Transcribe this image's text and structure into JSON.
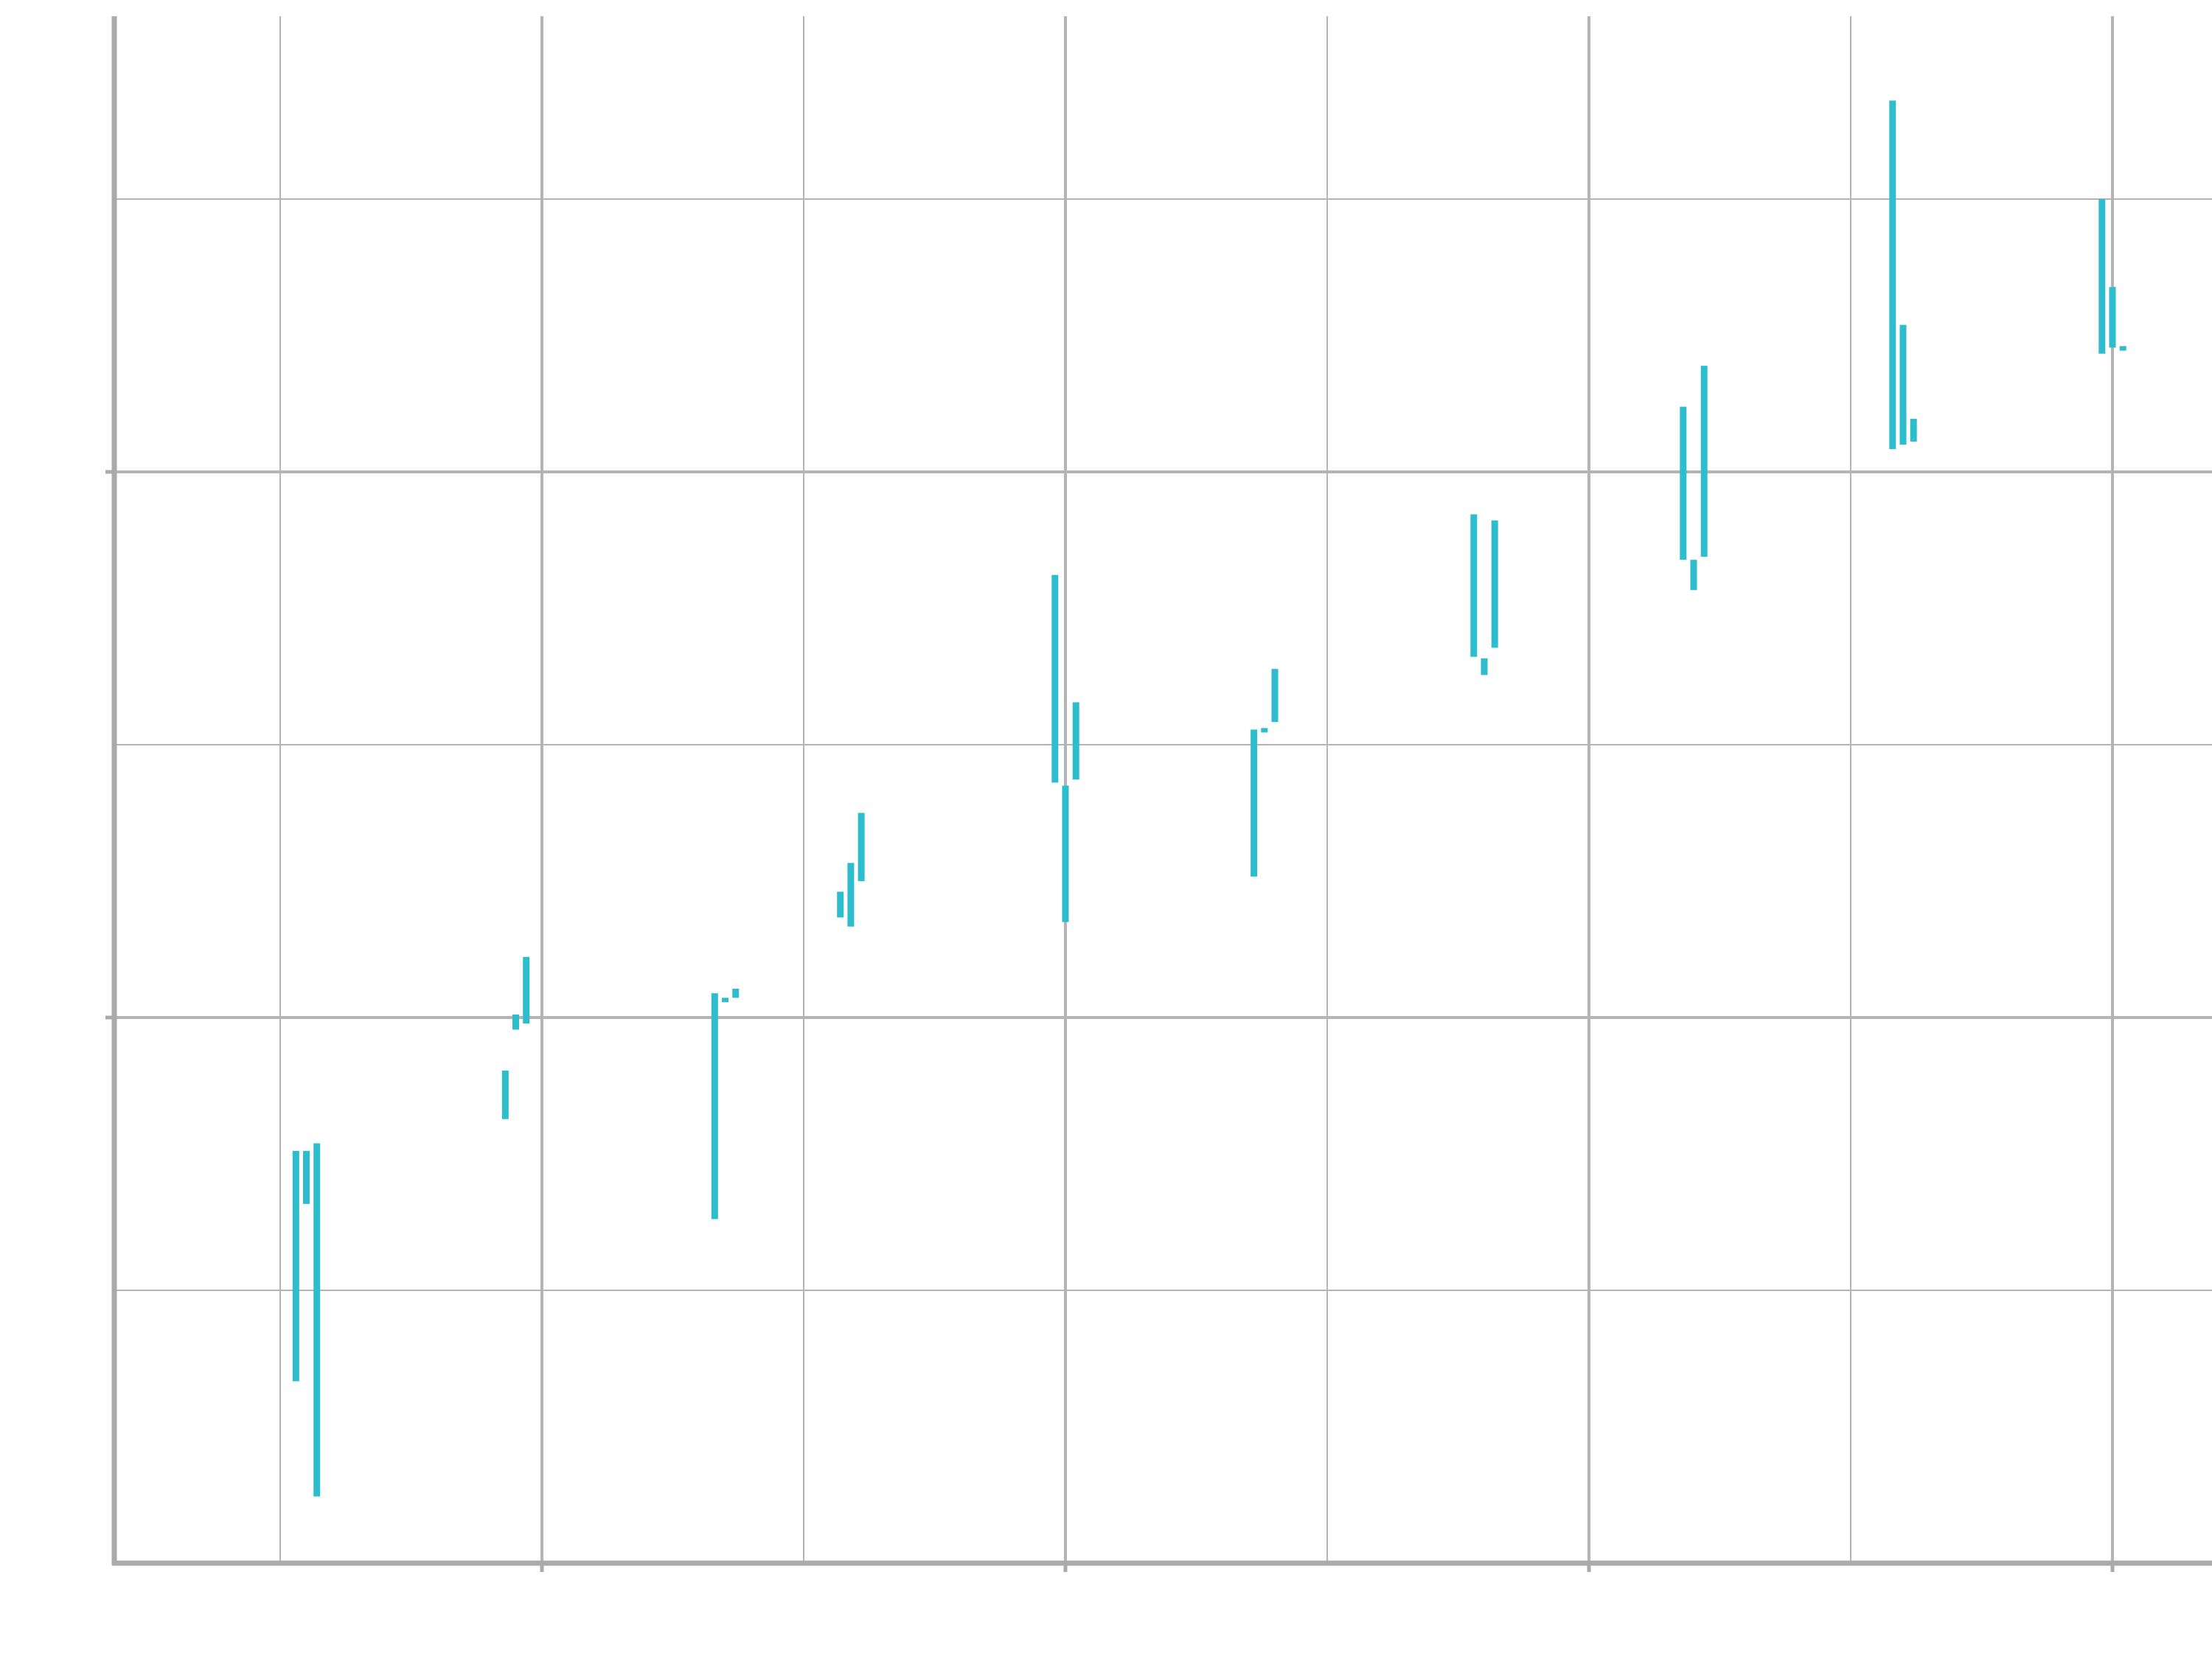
{
  "chart_data": {
    "type": "bar",
    "title": "",
    "xlabel": "",
    "ylabel": "",
    "grid": true,
    "xlim": [
      0.7,
      8.7
    ],
    "ylim": [
      0,
      9.6
    ],
    "x_major_ticks": [
      2,
      4,
      6,
      8
    ],
    "x_minor_ticks": [
      1,
      3,
      5,
      7
    ],
    "y_major_ticks": [
      3.6,
      7.2
    ],
    "y_minor_ticks": [
      1.8,
      5.4,
      9.0
    ],
    "colors": {
      "bar": "#2dbdcd",
      "grid": "#b4b4b4",
      "axis": "#aaaaaa"
    },
    "series": [
      {
        "name": "",
        "ranges": [
          [
            1.06,
            1.2,
            2.72
          ],
          [
            1.1,
            2.37,
            2.72
          ],
          [
            1.14,
            0.44,
            2.77
          ],
          [
            1.86,
            2.93,
            3.25
          ],
          [
            1.9,
            3.52,
            3.62
          ],
          [
            1.94,
            3.56,
            4.0
          ],
          [
            2.66,
            2.27,
            3.76
          ],
          [
            2.7,
            3.72,
            3.73
          ],
          [
            2.74,
            3.73,
            3.79
          ],
          [
            3.14,
            4.43,
            4.26
          ],
          [
            3.18,
            4.62,
            4.2
          ],
          [
            3.22,
            4.5,
            4.95
          ],
          [
            3.96,
            5.15,
            6.52
          ],
          [
            4.0,
            4.23,
            5.13
          ],
          [
            4.04,
            5.17,
            5.68
          ],
          [
            4.72,
            4.53,
            5.5
          ],
          [
            4.8,
            5.55,
            5.9
          ],
          [
            4.76,
            5.51,
            5.5
          ],
          [
            5.56,
            5.98,
            6.92
          ],
          [
            5.6,
            5.86,
            5.97
          ],
          [
            5.64,
            6.04,
            6.88
          ],
          [
            6.36,
            6.62,
            7.63
          ],
          [
            6.4,
            6.42,
            6.62
          ],
          [
            6.44,
            6.64,
            7.9
          ],
          [
            7.16,
            7.35,
            9.65
          ],
          [
            7.2,
            7.38,
            8.17
          ],
          [
            7.24,
            7.4,
            7.55
          ],
          [
            7.96,
            7.98,
            9.0
          ],
          [
            8.0,
            8.02,
            8.42
          ],
          [
            8.04,
            8.03,
            8.0
          ]
        ]
      }
    ]
  }
}
